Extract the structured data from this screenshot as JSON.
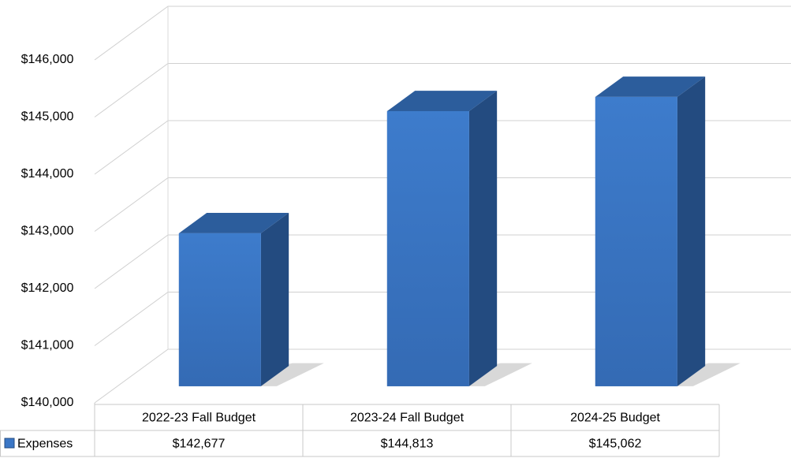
{
  "chart_data": {
    "type": "bar3d",
    "categories": [
      "2022-23 Fall Budget",
      "2023-24 Fall  Budget",
      "2024-25 Budget"
    ],
    "series": [
      {
        "name": "Expenses",
        "color": "#3b77c6",
        "values": [
          142677,
          144813,
          145062
        ],
        "value_labels": [
          "$142,677",
          "$144,813",
          "$145,062"
        ]
      }
    ],
    "ylim": [
      140000,
      146000
    ],
    "yticks": [
      {
        "value": 140000,
        "label": "$140,000"
      },
      {
        "value": 141000,
        "label": "$141,000"
      },
      {
        "value": 142000,
        "label": "$142,000"
      },
      {
        "value": 143000,
        "label": "$143,000"
      },
      {
        "value": 144000,
        "label": "$144,000"
      },
      {
        "value": 145000,
        "label": "$145,000"
      },
      {
        "value": 146000,
        "label": "$146,000"
      }
    ],
    "grid": true,
    "data_table": true
  }
}
